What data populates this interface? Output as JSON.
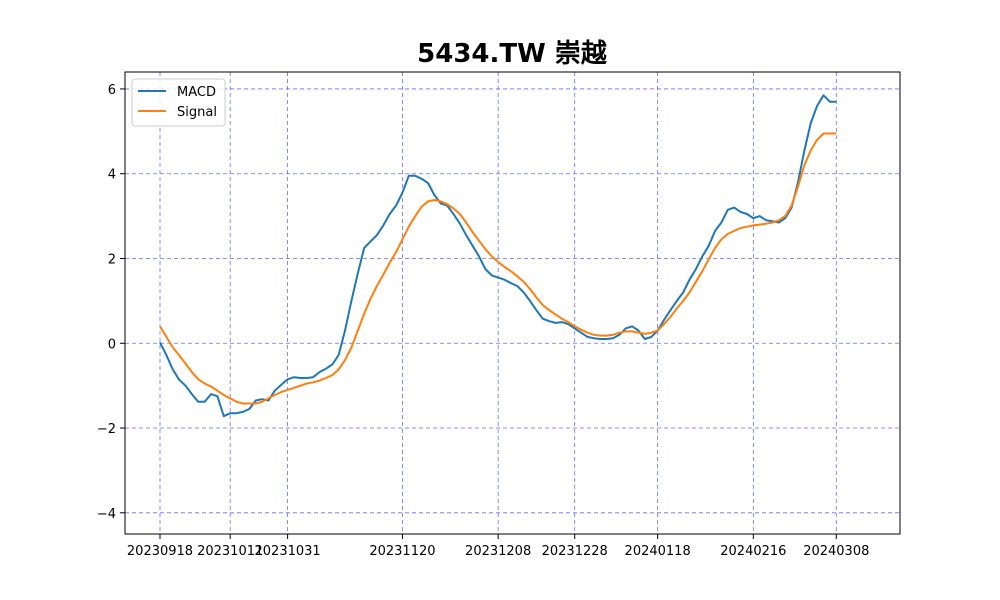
{
  "chart_data": {
    "type": "line",
    "title": "5434.TW 崇越",
    "xlabel": "",
    "ylabel": "",
    "x_ticks": [
      "20230918",
      "20231011",
      "20231031",
      "20231120",
      "20231208",
      "20231228",
      "20240118",
      "20240216",
      "20240308"
    ],
    "ylim": [
      -4.5,
      6.4
    ],
    "y_ticks": [
      -4,
      -2,
      0,
      2,
      4,
      6
    ],
    "grid": true,
    "grid_color": "#6b6bff",
    "legend_position": "top-left",
    "series": [
      {
        "name": "MACD",
        "color": "#1f77b4",
        "values": [
          [
            0,
            0.02
          ],
          [
            1,
            -0.28
          ],
          [
            2,
            -0.62
          ],
          [
            3,
            -0.86
          ],
          [
            4,
            -1.0
          ],
          [
            5,
            -1.2
          ],
          [
            6,
            -1.38
          ],
          [
            7,
            -1.38
          ],
          [
            8,
            -1.2
          ],
          [
            9,
            -1.25
          ],
          [
            10,
            -1.72
          ],
          [
            11,
            -1.65
          ],
          [
            12,
            -1.65
          ],
          [
            13,
            -1.62
          ],
          [
            14,
            -1.55
          ],
          [
            15,
            -1.35
          ],
          [
            16,
            -1.32
          ],
          [
            17,
            -1.35
          ],
          [
            18,
            -1.12
          ],
          [
            19,
            -0.98
          ],
          [
            20,
            -0.85
          ],
          [
            21,
            -0.8
          ],
          [
            22,
            -0.82
          ],
          [
            23,
            -0.82
          ],
          [
            24,
            -0.8
          ],
          [
            25,
            -0.68
          ],
          [
            26,
            -0.6
          ],
          [
            27,
            -0.5
          ],
          [
            28,
            -0.28
          ],
          [
            29,
            0.3
          ],
          [
            30,
            1.0
          ],
          [
            31,
            1.65
          ],
          [
            32,
            2.25
          ],
          [
            33,
            2.4
          ],
          [
            34,
            2.55
          ],
          [
            35,
            2.78
          ],
          [
            36,
            3.05
          ],
          [
            37,
            3.25
          ],
          [
            38,
            3.55
          ],
          [
            39,
            3.95
          ],
          [
            40,
            3.95
          ],
          [
            41,
            3.88
          ],
          [
            42,
            3.78
          ],
          [
            43,
            3.5
          ],
          [
            44,
            3.3
          ],
          [
            45,
            3.25
          ],
          [
            46,
            3.05
          ],
          [
            47,
            2.82
          ],
          [
            48,
            2.55
          ],
          [
            49,
            2.3
          ],
          [
            50,
            2.05
          ],
          [
            51,
            1.75
          ],
          [
            52,
            1.6
          ],
          [
            53,
            1.55
          ],
          [
            54,
            1.5
          ],
          [
            55,
            1.42
          ],
          [
            56,
            1.35
          ],
          [
            57,
            1.2
          ],
          [
            58,
            1.0
          ],
          [
            59,
            0.78
          ],
          [
            60,
            0.58
          ],
          [
            61,
            0.52
          ],
          [
            62,
            0.48
          ],
          [
            63,
            0.5
          ],
          [
            64,
            0.45
          ],
          [
            65,
            0.35
          ],
          [
            66,
            0.25
          ],
          [
            67,
            0.15
          ],
          [
            68,
            0.12
          ],
          [
            69,
            0.1
          ],
          [
            70,
            0.1
          ],
          [
            71,
            0.12
          ],
          [
            72,
            0.2
          ],
          [
            73,
            0.35
          ],
          [
            74,
            0.4
          ],
          [
            75,
            0.3
          ],
          [
            76,
            0.1
          ],
          [
            77,
            0.15
          ],
          [
            78,
            0.3
          ],
          [
            79,
            0.55
          ],
          [
            80,
            0.78
          ],
          [
            81,
            1.0
          ],
          [
            82,
            1.2
          ],
          [
            83,
            1.5
          ],
          [
            84,
            1.75
          ],
          [
            85,
            2.05
          ],
          [
            86,
            2.3
          ],
          [
            87,
            2.65
          ],
          [
            88,
            2.85
          ],
          [
            89,
            3.15
          ],
          [
            90,
            3.2
          ],
          [
            91,
            3.1
          ],
          [
            92,
            3.05
          ],
          [
            93,
            2.95
          ],
          [
            94,
            3.0
          ],
          [
            95,
            2.9
          ],
          [
            96,
            2.88
          ],
          [
            97,
            2.85
          ],
          [
            98,
            2.95
          ],
          [
            99,
            3.2
          ],
          [
            100,
            3.8
          ],
          [
            101,
            4.55
          ],
          [
            102,
            5.2
          ],
          [
            103,
            5.6
          ],
          [
            104,
            5.85
          ],
          [
            105,
            5.7
          ],
          [
            106,
            5.7
          ]
        ]
      },
      {
        "name": "Signal",
        "color": "#ff7f0e",
        "values": [
          [
            0,
            0.4
          ],
          [
            1,
            0.15
          ],
          [
            2,
            -0.1
          ],
          [
            3,
            -0.28
          ],
          [
            4,
            -0.48
          ],
          [
            5,
            -0.68
          ],
          [
            6,
            -0.85
          ],
          [
            7,
            -0.95
          ],
          [
            8,
            -1.02
          ],
          [
            9,
            -1.12
          ],
          [
            10,
            -1.22
          ],
          [
            11,
            -1.3
          ],
          [
            12,
            -1.38
          ],
          [
            13,
            -1.42
          ],
          [
            14,
            -1.42
          ],
          [
            15,
            -1.42
          ],
          [
            16,
            -1.38
          ],
          [
            17,
            -1.3
          ],
          [
            18,
            -1.22
          ],
          [
            19,
            -1.15
          ],
          [
            20,
            -1.1
          ],
          [
            21,
            -1.05
          ],
          [
            22,
            -1.0
          ],
          [
            23,
            -0.95
          ],
          [
            24,
            -0.92
          ],
          [
            25,
            -0.88
          ],
          [
            26,
            -0.82
          ],
          [
            27,
            -0.75
          ],
          [
            28,
            -0.62
          ],
          [
            29,
            -0.4
          ],
          [
            30,
            -0.1
          ],
          [
            31,
            0.3
          ],
          [
            32,
            0.7
          ],
          [
            33,
            1.05
          ],
          [
            34,
            1.35
          ],
          [
            35,
            1.62
          ],
          [
            36,
            1.9
          ],
          [
            37,
            2.15
          ],
          [
            38,
            2.45
          ],
          [
            39,
            2.75
          ],
          [
            40,
            3.0
          ],
          [
            41,
            3.22
          ],
          [
            42,
            3.35
          ],
          [
            43,
            3.38
          ],
          [
            44,
            3.35
          ],
          [
            45,
            3.28
          ],
          [
            46,
            3.18
          ],
          [
            47,
            3.05
          ],
          [
            48,
            2.85
          ],
          [
            49,
            2.62
          ],
          [
            50,
            2.42
          ],
          [
            51,
            2.22
          ],
          [
            52,
            2.05
          ],
          [
            53,
            1.92
          ],
          [
            54,
            1.8
          ],
          [
            55,
            1.7
          ],
          [
            56,
            1.58
          ],
          [
            57,
            1.45
          ],
          [
            58,
            1.28
          ],
          [
            59,
            1.08
          ],
          [
            60,
            0.9
          ],
          [
            61,
            0.78
          ],
          [
            62,
            0.68
          ],
          [
            63,
            0.58
          ],
          [
            64,
            0.5
          ],
          [
            65,
            0.4
          ],
          [
            66,
            0.32
          ],
          [
            67,
            0.25
          ],
          [
            68,
            0.2
          ],
          [
            69,
            0.18
          ],
          [
            70,
            0.18
          ],
          [
            71,
            0.2
          ],
          [
            72,
            0.25
          ],
          [
            73,
            0.28
          ],
          [
            74,
            0.28
          ],
          [
            75,
            0.25
          ],
          [
            76,
            0.22
          ],
          [
            77,
            0.25
          ],
          [
            78,
            0.3
          ],
          [
            79,
            0.45
          ],
          [
            80,
            0.62
          ],
          [
            81,
            0.82
          ],
          [
            82,
            1.0
          ],
          [
            83,
            1.2
          ],
          [
            84,
            1.45
          ],
          [
            85,
            1.7
          ],
          [
            86,
            1.98
          ],
          [
            87,
            2.25
          ],
          [
            88,
            2.45
          ],
          [
            89,
            2.58
          ],
          [
            90,
            2.65
          ],
          [
            91,
            2.72
          ],
          [
            92,
            2.75
          ],
          [
            93,
            2.78
          ],
          [
            94,
            2.8
          ],
          [
            95,
            2.82
          ],
          [
            96,
            2.85
          ],
          [
            97,
            2.9
          ],
          [
            98,
            3.0
          ],
          [
            99,
            3.25
          ],
          [
            100,
            3.7
          ],
          [
            101,
            4.2
          ],
          [
            102,
            4.55
          ],
          [
            103,
            4.8
          ],
          [
            104,
            4.95
          ],
          [
            105,
            4.95
          ],
          [
            106,
            4.95
          ]
        ]
      }
    ]
  }
}
